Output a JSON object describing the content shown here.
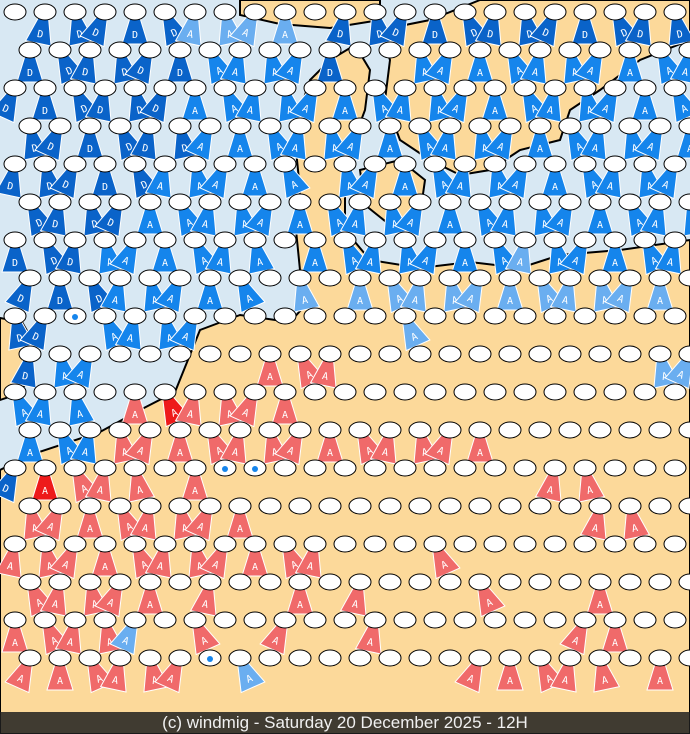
{
  "footer": {
    "caption": "(c) windmig - Saturday 20 December 2025 - 12H"
  },
  "colors": {
    "sea": "#d8e8f3",
    "land": "#fcd99a",
    "dark_blue": "#0a63c9",
    "blue": "#1585ec",
    "light_blue": "#6aaef0",
    "pink": "#f06a6a",
    "red": "#ee1a1a"
  },
  "legend_codes": {
    "b": "dark blue D",
    "B": "blue A",
    "l": "light blue A",
    "r": "pink A",
    "R": "red A",
    "w": "rain drop",
    ".": "empty"
  },
  "marker_rows": [
    ".bbbbbllll.bbbbbbbbbbbb",
    "bbbbbbBBBBb..BBBBBBBBBB",
    "bbbbbbBBBBBBBBBBBBBBBBB",
    "bbbbbbBBBBBBBBBBBBBBBBB",
    "bbbbbBBBBB.BBBBBBBBBBBB",
    "bbbbBBBBBBBBBBBBBBBBBBB",
    "bbbBBBBBB.BBBBBBBlBBBBB",
    "bbbBBBBB.l.lllllllllll.",
    "bbwBBBB......l.........",
    "bBB.....rrr..........ll",
    "BBB.rRrrrr.............",
    "BBBrrrrrrrrrrrrr.......",
    "bRrrr.rww.........rr...",
    "rrrrrrrr...........rr..",
    "rrrrrrrrrrr...r........",
    "rrrrr.r..r.r...r...r...",
    "rrrrl.r..r..r......rr..",
    "rrrrrrwl.......rrrrr.r."
  ]
}
